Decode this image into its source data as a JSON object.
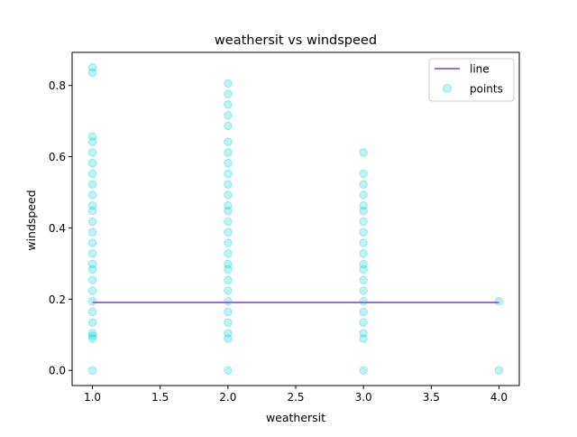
{
  "chart_data": {
    "type": "scatter",
    "title": "weathersit vs windspeed",
    "xlabel": "weathersit",
    "ylabel": "windspeed",
    "xlim": [
      0.85,
      4.15
    ],
    "ylim": [
      -0.0425,
      0.893
    ],
    "xticks": [
      1.0,
      1.5,
      2.0,
      2.5,
      3.0,
      3.5,
      4.0
    ],
    "xtick_labels": [
      "1.0",
      "1.5",
      "2.0",
      "2.5",
      "3.0",
      "3.5",
      "4.0"
    ],
    "yticks": [
      0.0,
      0.2,
      0.4,
      0.6,
      0.8
    ],
    "ytick_labels": [
      "0.0",
      "0.2",
      "0.4",
      "0.6",
      "0.8"
    ],
    "grid": false,
    "legend": {
      "placement": "top-right",
      "entries": [
        "line",
        "points"
      ]
    },
    "series": [
      {
        "name": "line",
        "kind": "line",
        "color": "#9370DB",
        "x": [
          1.0,
          4.0
        ],
        "y": [
          0.1906,
          0.1906
        ]
      },
      {
        "name": "points",
        "kind": "scatter",
        "color": "#00CED1",
        "alpha": 0.25,
        "points": [
          [
            1,
            0
          ],
          [
            1,
            0.0896
          ],
          [
            1,
            0.097
          ],
          [
            1,
            0.1045
          ],
          [
            1,
            0.1343
          ],
          [
            1,
            0.1642
          ],
          [
            1,
            0.194
          ],
          [
            1,
            0.2239
          ],
          [
            1,
            0.2537
          ],
          [
            1,
            0.2836
          ],
          [
            1,
            0.2985
          ],
          [
            1,
            0.3284
          ],
          [
            1,
            0.3582
          ],
          [
            1,
            0.3881
          ],
          [
            1,
            0.4179
          ],
          [
            1,
            0.4478
          ],
          [
            1,
            0.4627
          ],
          [
            1,
            0.4925
          ],
          [
            1,
            0.5224
          ],
          [
            1,
            0.5522
          ],
          [
            1,
            0.5821
          ],
          [
            1,
            0.6119
          ],
          [
            1,
            0.6418
          ],
          [
            1,
            0.6567
          ],
          [
            1,
            0.8358
          ],
          [
            1,
            0.8507
          ],
          [
            2,
            0
          ],
          [
            2,
            0.0896
          ],
          [
            2,
            0.1045
          ],
          [
            2,
            0.1343
          ],
          [
            2,
            0.1642
          ],
          [
            2,
            0.194
          ],
          [
            2,
            0.2239
          ],
          [
            2,
            0.2537
          ],
          [
            2,
            0.2836
          ],
          [
            2,
            0.2985
          ],
          [
            2,
            0.3284
          ],
          [
            2,
            0.3582
          ],
          [
            2,
            0.3881
          ],
          [
            2,
            0.4179
          ],
          [
            2,
            0.4478
          ],
          [
            2,
            0.4627
          ],
          [
            2,
            0.4925
          ],
          [
            2,
            0.5224
          ],
          [
            2,
            0.5522
          ],
          [
            2,
            0.5821
          ],
          [
            2,
            0.6119
          ],
          [
            2,
            0.6418
          ],
          [
            2,
            0.6866
          ],
          [
            2,
            0.7164
          ],
          [
            2,
            0.7463
          ],
          [
            2,
            0.7761
          ],
          [
            2,
            0.806
          ],
          [
            3,
            0
          ],
          [
            3,
            0.0896
          ],
          [
            3,
            0.1045
          ],
          [
            3,
            0.1343
          ],
          [
            3,
            0.1642
          ],
          [
            3,
            0.194
          ],
          [
            3,
            0.2239
          ],
          [
            3,
            0.2537
          ],
          [
            3,
            0.2836
          ],
          [
            3,
            0.2985
          ],
          [
            3,
            0.3284
          ],
          [
            3,
            0.3582
          ],
          [
            3,
            0.3881
          ],
          [
            3,
            0.4179
          ],
          [
            3,
            0.4478
          ],
          [
            3,
            0.4627
          ],
          [
            3,
            0.4925
          ],
          [
            3,
            0.5224
          ],
          [
            3,
            0.5522
          ],
          [
            3,
            0.6119
          ],
          [
            4,
            0
          ],
          [
            4,
            0.194
          ]
        ]
      }
    ]
  }
}
